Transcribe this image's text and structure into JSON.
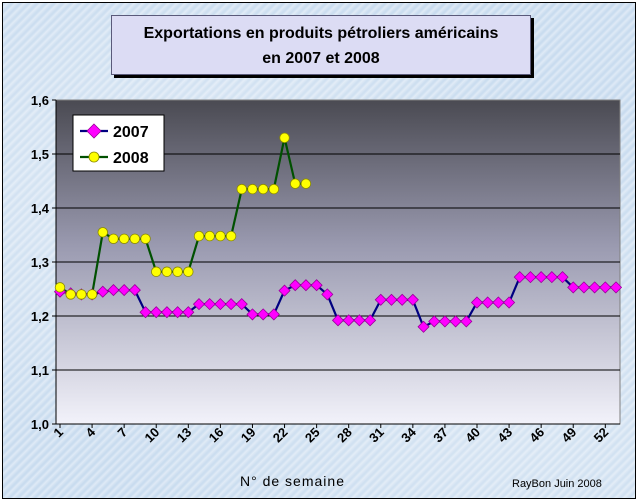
{
  "chart_data": {
    "type": "line",
    "title_line1": "Exportations en produits pétroliers américains",
    "title_line2": "en 2007 et 2008",
    "xlabel": "N° de semaine",
    "ylabel": "",
    "ylim": [
      1.0,
      1.6
    ],
    "yticks": [
      "1,0",
      "1,1",
      "1,2",
      "1,3",
      "1,4",
      "1,5",
      "1,6"
    ],
    "xticks": [
      "1",
      "4",
      "7",
      "10",
      "13",
      "16",
      "19",
      "22",
      "25",
      "28",
      "31",
      "34",
      "37",
      "40",
      "43",
      "46",
      "49",
      "52"
    ],
    "grid": "horizontal",
    "legend_position": "top-left",
    "series": [
      {
        "name": "2007",
        "color": "#000080",
        "marker": "diamond",
        "marker_color": "#ff00ff",
        "x": [
          1,
          2,
          3,
          4,
          5,
          6,
          7,
          8,
          9,
          10,
          11,
          12,
          13,
          14,
          15,
          16,
          17,
          18,
          19,
          20,
          21,
          22,
          23,
          24,
          25,
          26,
          27,
          28,
          29,
          30,
          31,
          32,
          33,
          34,
          35,
          36,
          37,
          38,
          39,
          40,
          41,
          42,
          43,
          44,
          45,
          46,
          47,
          48,
          49,
          50,
          51,
          52,
          53
        ],
        "values": [
          1.245,
          1.242,
          1.24,
          1.24,
          1.245,
          1.248,
          1.248,
          1.248,
          1.207,
          1.207,
          1.207,
          1.207,
          1.207,
          1.222,
          1.222,
          1.222,
          1.222,
          1.222,
          1.203,
          1.203,
          1.203,
          1.247,
          1.257,
          1.257,
          1.257,
          1.24,
          1.192,
          1.192,
          1.192,
          1.192,
          1.23,
          1.23,
          1.23,
          1.23,
          1.18,
          1.19,
          1.19,
          1.19,
          1.19,
          1.225,
          1.225,
          1.225,
          1.225,
          1.272,
          1.272,
          1.272,
          1.272,
          1.272,
          1.253,
          1.253,
          1.253,
          1.253,
          1.253
        ]
      },
      {
        "name": "2008",
        "color": "#005000",
        "marker": "circle",
        "marker_color": "#ffff00",
        "x": [
          1,
          2,
          3,
          4,
          5,
          6,
          7,
          8,
          9,
          10,
          11,
          12,
          13,
          14,
          15,
          16,
          17,
          18,
          19,
          20,
          21,
          22,
          23,
          24
        ],
        "values": [
          1.253,
          1.24,
          1.24,
          1.24,
          1.355,
          1.343,
          1.343,
          1.343,
          1.343,
          1.282,
          1.282,
          1.282,
          1.282,
          1.348,
          1.348,
          1.348,
          1.348,
          1.435,
          1.435,
          1.435,
          1.435,
          1.53,
          1.445,
          1.445
        ]
      }
    ]
  },
  "footer": {
    "credit": "RayBon Juin 2008"
  }
}
